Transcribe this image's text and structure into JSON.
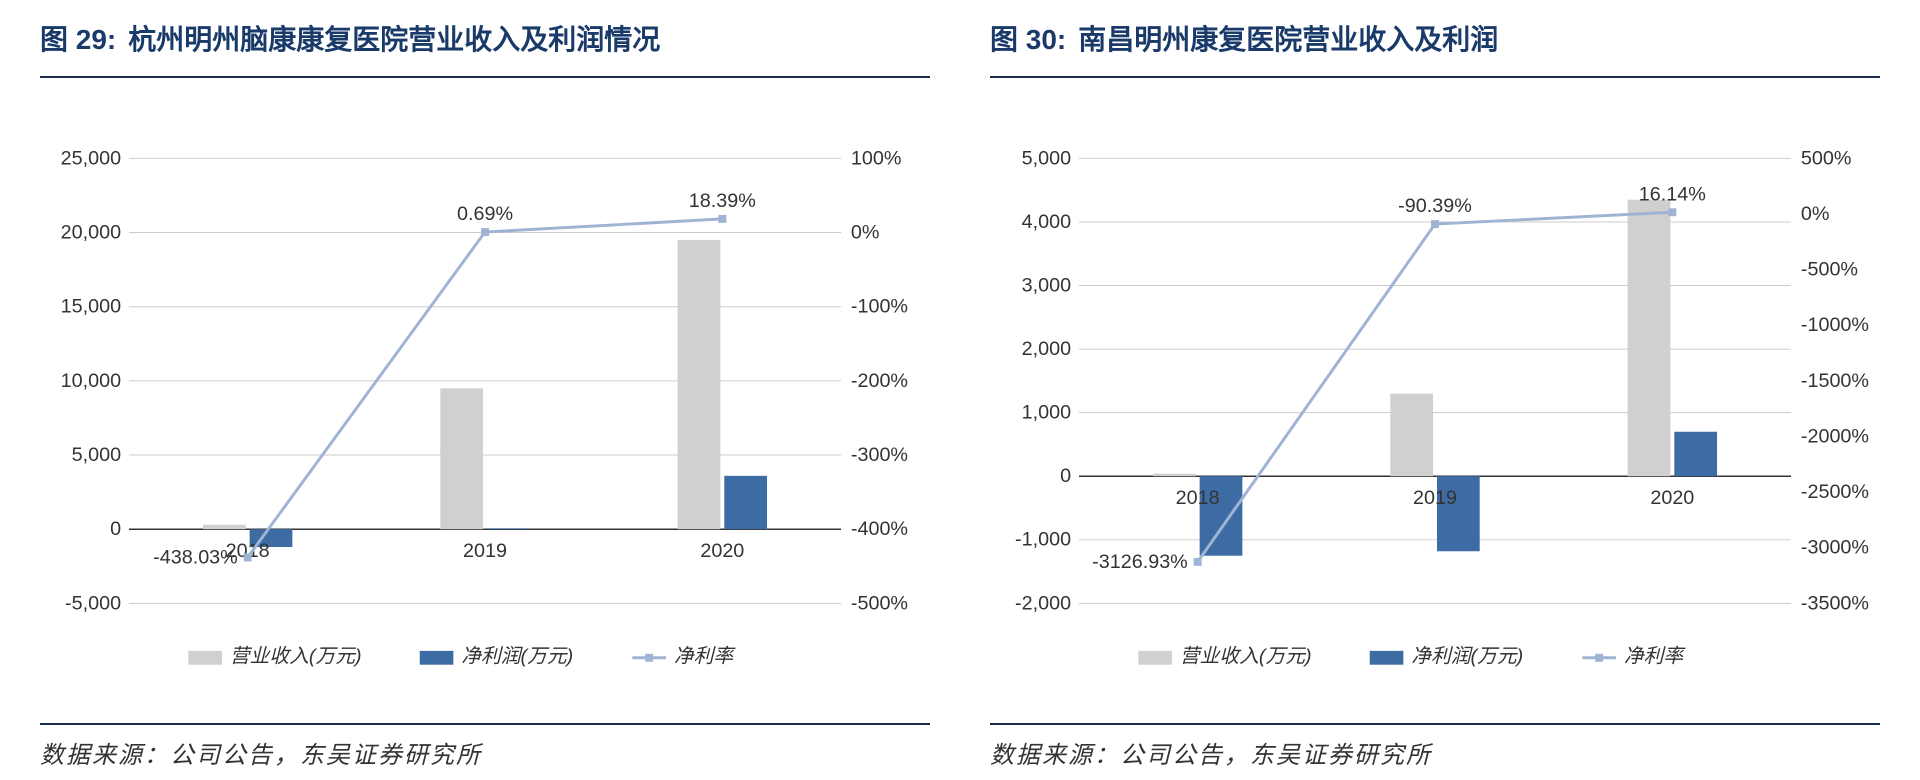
{
  "left": {
    "fig_num": "图 29:",
    "fig_title": "杭州明州脑康康复医院营业收入及利润情况",
    "source": "数据来源：公司公告，东吴证券研究所",
    "chart": {
      "type": "bar+line",
      "categories": [
        "2018",
        "2019",
        "2020"
      ],
      "bar1_label": "营业收入(万元)",
      "bar2_label": "净利润(万元)",
      "line_label": "净利率",
      "bar1_values": [
        300,
        9500,
        19500
      ],
      "bar2_values": [
        -1200,
        60,
        3600
      ],
      "line_values_pct": [
        -438.03,
        0.69,
        18.39
      ],
      "line_labels": [
        "-438.03%",
        "0.69%",
        "18.39%"
      ],
      "y1_min": -5000,
      "y1_max": 25000,
      "y1_step": 5000,
      "y1_ticks": [
        "-5,000",
        "0",
        "5,000",
        "10,000",
        "15,000",
        "20,000",
        "25,000"
      ],
      "y2_min": -500,
      "y2_max": 100,
      "y2_step": 100,
      "y2_ticks": [
        "-500%",
        "-400%",
        "-300%",
        "-200%",
        "-100%",
        "0%",
        "100%"
      ],
      "bar1_color": "#d0d0d0",
      "bar2_color": "#3d6ba3",
      "line_color": "#9fb4d4",
      "grid_color": "#cccccc",
      "axis_color": "#333333",
      "text_color": "#333333",
      "background": "#ffffff",
      "bar_width": 0.18,
      "label_font": 20,
      "tick_font": 20,
      "legend_font": 20
    }
  },
  "right": {
    "fig_num": "图 30:",
    "fig_title": "南昌明州康复医院营业收入及利润",
    "source": "数据来源：公司公告，东吴证券研究所",
    "chart": {
      "type": "bar+line",
      "categories": [
        "2018",
        "2019",
        "2020"
      ],
      "bar1_label": "营业收入(万元)",
      "bar2_label": "净利润(万元)",
      "line_label": "净利率",
      "bar1_values": [
        40,
        1300,
        4350
      ],
      "bar2_values": [
        -1250,
        -1180,
        700
      ],
      "line_values_pct": [
        -3126.93,
        -90.39,
        16.14
      ],
      "line_labels": [
        "-3126.93%",
        "-90.39%",
        "16.14%"
      ],
      "y1_min": -2000,
      "y1_max": 5000,
      "y1_step": 1000,
      "y1_ticks": [
        "-2,000",
        "-1,000",
        "0",
        "1,000",
        "2,000",
        "3,000",
        "4,000",
        "5,000"
      ],
      "y2_min": -3500,
      "y2_max": 500,
      "y2_step": 500,
      "y2_ticks": [
        "-3500%",
        "-3000%",
        "-2500%",
        "-2000%",
        "-1500%",
        "-1000%",
        "-500%",
        "0%",
        "500%"
      ],
      "bar1_color": "#d0d0d0",
      "bar2_color": "#3d6ba3",
      "line_color": "#9fb4d4",
      "grid_color": "#cccccc",
      "axis_color": "#333333",
      "text_color": "#333333",
      "background": "#ffffff",
      "bar_width": 0.18,
      "label_font": 20,
      "tick_font": 20,
      "legend_font": 20
    }
  }
}
